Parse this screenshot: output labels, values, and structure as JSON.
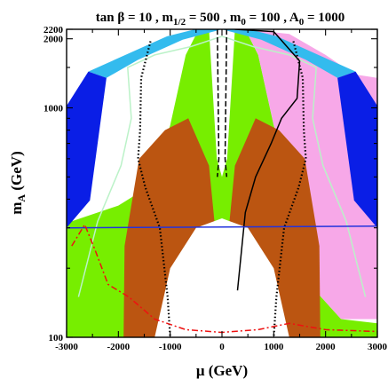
{
  "chart_data": {
    "type": "area",
    "title": {
      "main": "tan β = 10 ,  m",
      "sub1": "1/2",
      "mid": " = 500 ,  m",
      "sub2": "0",
      "mid2": " = 100 , A",
      "sub3": "0",
      "end": " = 1000"
    },
    "xlabel": "μ (GeV)",
    "ylabel": {
      "main": "m",
      "sub": "A",
      "rest": " (GeV)"
    },
    "xlim": [
      -3000,
      3000
    ],
    "ylim": [
      100,
      2200
    ],
    "yscale": "log",
    "x_ticks": [
      -3000,
      -2000,
      -1000,
      0,
      1000,
      2000,
      3000
    ],
    "x_tick_labels": [
      "-3000",
      "-2000",
      "-1000",
      "0",
      "1000",
      "2000",
      "3000"
    ],
    "y_ticks": [
      100,
      1000,
      2000,
      2200
    ],
    "y_tick_labels": [
      "100",
      "1000",
      "2000",
      "2200"
    ],
    "colors": {
      "green_region": "#77ee00",
      "dark_blue_region": "#0a1ee6",
      "light_blue_region": "#33bbee",
      "brown_region": "#bb5511",
      "pink_region": "#f7a8e8",
      "red_dashed": "#ee1111",
      "blue_line": "#2233dd",
      "pale_green_contour": "#bbf2c8"
    },
    "series": [
      {
        "kind": "region",
        "color": "#77ee00",
        "polygon": [
          [
            -3000,
            100
          ],
          [
            -3000,
            315
          ],
          [
            -2000,
            375
          ],
          [
            -1650,
            420
          ],
          [
            -1250,
            560
          ],
          [
            -1000,
            840
          ],
          [
            -700,
            1700
          ],
          [
            -450,
            2200
          ],
          [
            -250,
            2200
          ],
          [
            -100,
            600
          ],
          [
            0,
            500
          ],
          [
            100,
            600
          ],
          [
            250,
            2200
          ],
          [
            450,
            2200
          ],
          [
            700,
            1700
          ],
          [
            1000,
            840
          ],
          [
            1300,
            500
          ],
          [
            1800,
            160
          ],
          [
            2300,
            120
          ],
          [
            3000,
            115
          ],
          [
            3000,
            100
          ]
        ]
      },
      {
        "kind": "region",
        "color": "#f7a8e8",
        "polygon": [
          [
            450,
            2200
          ],
          [
            1300,
            2100
          ],
          [
            2000,
            1700
          ],
          [
            2550,
            1400
          ],
          [
            3000,
            1350
          ],
          [
            3000,
            120
          ],
          [
            2300,
            120
          ],
          [
            1800,
            160
          ],
          [
            1300,
            500
          ],
          [
            1000,
            840
          ],
          [
            700,
            1700
          ]
        ]
      },
      {
        "kind": "region",
        "color": "#33bbee",
        "polygon": [
          [
            -1060,
            2050
          ],
          [
            -520,
            2200
          ],
          [
            520,
            2200
          ],
          [
            1060,
            2050
          ],
          [
            2580,
            1440
          ],
          [
            2230,
            1350
          ],
          [
            1620,
            1620
          ],
          [
            760,
            1980
          ],
          [
            0,
            2200
          ],
          [
            -760,
            1980
          ],
          [
            -1620,
            1620
          ],
          [
            -2230,
            1350
          ],
          [
            -2580,
            1440
          ]
        ]
      },
      {
        "kind": "region",
        "color": "#0a1ee6",
        "polygon": [
          [
            -2580,
            1440
          ],
          [
            -3000,
            1020
          ],
          [
            -3000,
            300
          ],
          [
            -2550,
            395
          ],
          [
            -2230,
            1350
          ]
        ]
      },
      {
        "kind": "region",
        "color": "#0a1ee6",
        "polygon": [
          [
            2580,
            1440
          ],
          [
            3000,
            1020
          ],
          [
            3000,
            300
          ],
          [
            2550,
            395
          ],
          [
            2230,
            1350
          ]
        ]
      },
      {
        "kind": "region",
        "color": "#bb5511",
        "polygon": [
          [
            -1900,
            100
          ],
          [
            -1880,
            250
          ],
          [
            -1600,
            600
          ],
          [
            -1100,
            800
          ],
          [
            -650,
            900
          ],
          [
            -250,
            560
          ],
          [
            -100,
            250
          ],
          [
            -300,
            160
          ],
          [
            -700,
            110
          ],
          [
            -1000,
            100
          ]
        ]
      },
      {
        "kind": "region",
        "color": "#bb5511",
        "polygon": [
          [
            1900,
            100
          ],
          [
            1880,
            250
          ],
          [
            1600,
            600
          ],
          [
            1100,
            800
          ],
          [
            650,
            900
          ],
          [
            250,
            560
          ],
          [
            100,
            250
          ],
          [
            300,
            160
          ],
          [
            700,
            110
          ],
          [
            1000,
            100
          ]
        ]
      },
      {
        "kind": "region",
        "color": "#ffffff",
        "polygon": [
          [
            -1300,
            100
          ],
          [
            -1000,
            200
          ],
          [
            -500,
            300
          ],
          [
            0,
            330
          ],
          [
            500,
            300
          ],
          [
            1000,
            200
          ],
          [
            1300,
            100
          ]
        ]
      },
      {
        "kind": "line",
        "color": "#bbf2c8",
        "style": "solid",
        "points": [
          [
            -2770,
            150
          ],
          [
            -2400,
            320
          ],
          [
            -1950,
            560
          ],
          [
            -1750,
            900
          ],
          [
            -1820,
            1500
          ],
          [
            -1300,
            1700
          ],
          [
            -600,
            1850
          ],
          [
            0,
            2050
          ],
          [
            600,
            1850
          ],
          [
            1300,
            1700
          ],
          [
            1820,
            1500
          ],
          [
            1750,
            900
          ],
          [
            1950,
            560
          ],
          [
            2400,
            320
          ],
          [
            2770,
            150
          ]
        ]
      },
      {
        "kind": "line",
        "color": "#000000",
        "style": "dotted",
        "points": [
          [
            -1380,
            1950
          ],
          [
            -1560,
            1350
          ],
          [
            -1580,
            800
          ],
          [
            -1620,
            600
          ],
          [
            -1480,
            450
          ],
          [
            -1200,
            300
          ],
          [
            -1050,
            150
          ],
          [
            -1000,
            100
          ]
        ]
      },
      {
        "kind": "line",
        "color": "#000000",
        "style": "dotted",
        "points": [
          [
            1380,
            1950
          ],
          [
            1560,
            1350
          ],
          [
            1580,
            800
          ],
          [
            1620,
            600
          ],
          [
            1480,
            450
          ],
          [
            1200,
            300
          ],
          [
            1050,
            150
          ],
          [
            1000,
            100
          ]
        ]
      },
      {
        "kind": "line",
        "color": "#000000",
        "style": "solid",
        "points": [
          [
            250,
            2200
          ],
          [
            1000,
            2150
          ],
          [
            1500,
            1600
          ],
          [
            1450,
            1100
          ],
          [
            1150,
            900
          ],
          [
            950,
            700
          ],
          [
            650,
            500
          ],
          [
            450,
            350
          ],
          [
            300,
            160
          ]
        ]
      },
      {
        "kind": "line",
        "color": "#2233dd",
        "style": "solid",
        "points": [
          [
            -3000,
            300
          ],
          [
            3000,
            305
          ]
        ]
      },
      {
        "kind": "line",
        "color": "#ee1111",
        "style": "dashdot",
        "points": [
          [
            -2900,
            250
          ],
          [
            -2650,
            310
          ],
          [
            -2450,
            240
          ],
          [
            -2200,
            170
          ],
          [
            -1800,
            150
          ],
          [
            -1300,
            120
          ],
          [
            -700,
            108
          ],
          [
            0,
            105
          ],
          [
            700,
            108
          ],
          [
            1300,
            115
          ],
          [
            2000,
            108
          ],
          [
            3000,
            106
          ]
        ]
      },
      {
        "kind": "line",
        "color": "#000000",
        "style": "dashed",
        "points": [
          [
            -90,
            2200
          ],
          [
            -60,
            600
          ],
          [
            -90,
            500
          ]
        ]
      },
      {
        "kind": "line",
        "color": "#000000",
        "style": "dashed",
        "points": [
          [
            90,
            2200
          ],
          [
            60,
            600
          ],
          [
            90,
            500
          ]
        ]
      }
    ]
  }
}
